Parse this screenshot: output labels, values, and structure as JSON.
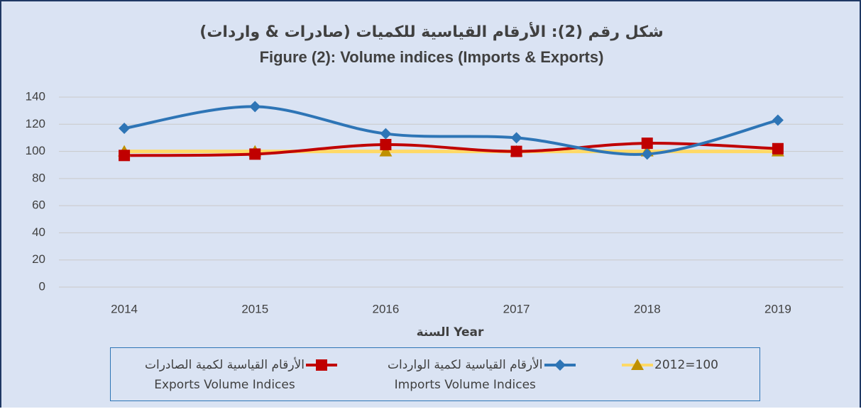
{
  "chart_data": {
    "type": "line",
    "title": "شكل رقم (2): الأرقام القياسية للكميات (صادرات & واردات)",
    "subtitle": "Figure (2): Volume indices (Imports & Exports)",
    "x_label": "السنة Year",
    "categories": [
      "2014",
      "2015",
      "2016",
      "2017",
      "2018",
      "2019"
    ],
    "series": [
      {
        "name": "الأرقام القياسية لكمية الصادرات\nExports Volume Indices",
        "color": "#c00000",
        "marker": "square",
        "values": [
          97,
          98,
          105,
          100,
          106,
          102
        ]
      },
      {
        "name": "الأرقام القياسية لكمية الواردات\nImports Volume Indices",
        "color": "#2e75b6",
        "marker": "diamond",
        "values": [
          117,
          133,
          113,
          110,
          98,
          123
        ]
      },
      {
        "name": "2012=100",
        "color": "#ffd966",
        "marker": "triangle",
        "values": [
          100,
          100,
          100,
          100,
          100,
          100
        ]
      }
    ],
    "ylim": [
      0,
      140
    ],
    "yticks": [
      0,
      20,
      40,
      60,
      80,
      100,
      120,
      140
    ],
    "grid": true,
    "smooth": true,
    "legend": "bottom"
  }
}
